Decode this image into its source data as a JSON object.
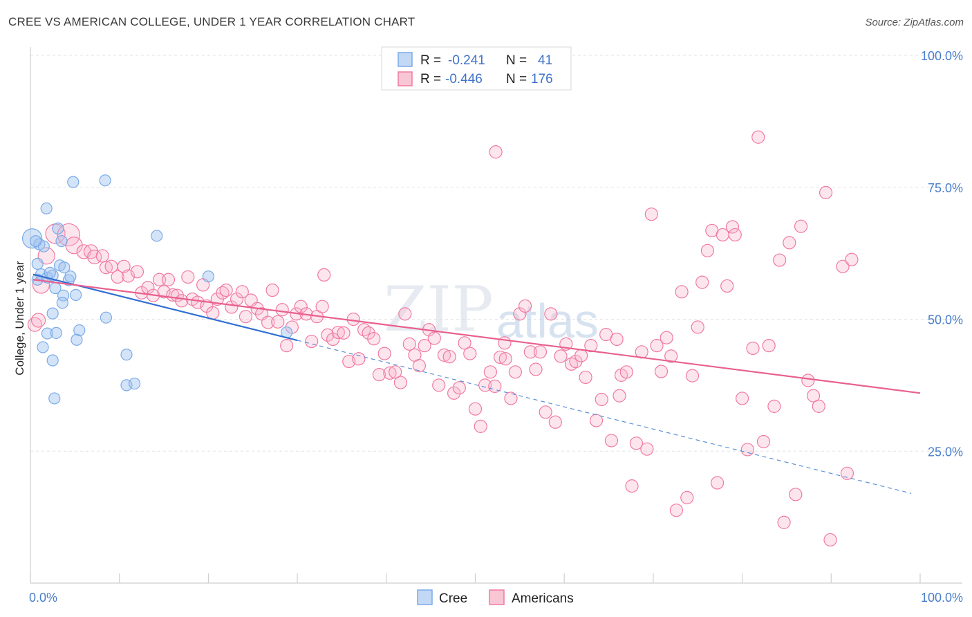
{
  "chart_data": {
    "type": "scatter",
    "title": "CREE VS AMERICAN COLLEGE, UNDER 1 YEAR CORRELATION CHART",
    "source": "Source: ZipAtlas.com",
    "xlabel": "",
    "ylabel": "College, Under 1 year",
    "xlim": [
      0,
      100
    ],
    "ylim": [
      0,
      100
    ],
    "x_tick_labels": [
      "0.0%",
      "100.0%"
    ],
    "y_tick_labels": [
      {
        "value": 100,
        "label": "100.0%"
      },
      {
        "value": 75,
        "label": "75.0%"
      },
      {
        "value": 50,
        "label": "50.0%"
      },
      {
        "value": 25,
        "label": "25.0%"
      }
    ],
    "legend": {
      "entries": [
        {
          "name": "Cree",
          "r_label": "R =",
          "r": "-0.241",
          "n_label": "N =",
          "n": "41",
          "color": "#7aaae8"
        },
        {
          "name": "Americans",
          "r_label": "R =",
          "r": "-0.446",
          "n_label": "N =",
          "n": "176",
          "color": "#f07aa0"
        }
      ]
    },
    "watermark": [
      "ZIP",
      "atlas"
    ],
    "series": [
      {
        "name": "Cree",
        "color": "#7aaae8",
        "trend": {
          "x0": 0.3,
          "y0": 58.5,
          "x1": 30,
          "y1": 46,
          "dash_to_x": 99,
          "dash_to_y": 17
        },
        "points": [
          [
            0.2,
            65.3,
            14
          ],
          [
            0.8,
            60.5,
            8
          ],
          [
            0.8,
            57.5,
            8
          ],
          [
            1.0,
            64.2,
            8
          ],
          [
            1.5,
            63.8,
            8
          ],
          [
            1.2,
            58.5,
            8
          ],
          [
            1.8,
            71.0,
            8
          ],
          [
            1.9,
            57.9,
            8
          ],
          [
            2.5,
            58.3,
            8
          ],
          [
            3.1,
            67.2,
            8
          ],
          [
            3.5,
            64.8,
            8
          ],
          [
            3.3,
            60.2,
            8
          ],
          [
            3.8,
            59.8,
            8
          ],
          [
            4.3,
            57.4,
            8
          ],
          [
            4.5,
            58.1,
            8
          ],
          [
            2.8,
            55.9,
            8
          ],
          [
            3.7,
            54.5,
            8
          ],
          [
            5.1,
            54.6,
            8
          ],
          [
            3.6,
            53.1,
            8
          ],
          [
            2.5,
            51.1,
            8
          ],
          [
            1.9,
            47.3,
            8
          ],
          [
            2.9,
            47.4,
            8
          ],
          [
            5.5,
            47.9,
            8
          ],
          [
            5.2,
            46.1,
            8
          ],
          [
            1.4,
            44.7,
            8
          ],
          [
            2.5,
            42.2,
            8
          ],
          [
            2.7,
            35.0,
            8
          ],
          [
            4.8,
            76.0,
            8
          ],
          [
            8.4,
            76.3,
            8
          ],
          [
            14.2,
            65.8,
            8
          ],
          [
            8.5,
            50.3,
            8
          ],
          [
            10.8,
            43.3,
            8
          ],
          [
            10.8,
            37.5,
            8
          ],
          [
            11.7,
            37.8,
            8
          ],
          [
            20.0,
            58.1,
            8
          ],
          [
            28.8,
            47.5,
            8
          ],
          [
            0.6,
            64.8,
            8
          ],
          [
            2.2,
            58.8,
            8
          ]
        ]
      },
      {
        "name": "Americans",
        "color": "#f07aa0",
        "trend": {
          "x0": 0.3,
          "y0": 57.5,
          "x1": 100,
          "y1": 36
        },
        "points": [
          [
            0.5,
            49.0,
            10
          ],
          [
            0.9,
            49.8,
            10
          ],
          [
            1.2,
            56.5,
            12
          ],
          [
            1.8,
            62.0,
            12
          ],
          [
            2.8,
            66.2,
            14
          ],
          [
            4.3,
            66.0,
            16
          ],
          [
            4.9,
            64.0,
            12
          ],
          [
            6.0,
            62.8,
            10
          ],
          [
            6.8,
            62.8,
            10
          ],
          [
            7.2,
            61.8,
            10
          ],
          [
            8.1,
            62.0,
            9
          ],
          [
            8.5,
            59.8,
            9
          ],
          [
            9.1,
            60.0,
            9
          ],
          [
            9.8,
            58.0,
            9
          ],
          [
            10.5,
            60.0,
            9
          ],
          [
            11.0,
            58.2,
            9
          ],
          [
            12.0,
            59.0,
            9
          ],
          [
            12.5,
            55.0,
            9
          ],
          [
            13.2,
            56.0,
            9
          ],
          [
            13.8,
            54.5,
            9
          ],
          [
            14.5,
            57.5,
            9
          ],
          [
            15.0,
            55.2,
            9
          ],
          [
            15.5,
            57.5,
            9
          ],
          [
            16.0,
            54.6,
            9
          ],
          [
            16.5,
            54.5,
            9
          ],
          [
            17.0,
            53.5,
            9
          ],
          [
            17.7,
            58.0,
            9
          ],
          [
            18.2,
            53.8,
            9
          ],
          [
            18.8,
            53.2,
            9
          ],
          [
            19.4,
            56.5,
            9
          ],
          [
            19.8,
            52.5,
            9
          ],
          [
            20.5,
            51.2,
            9
          ],
          [
            21.0,
            53.8,
            9
          ],
          [
            21.6,
            55.0,
            9
          ],
          [
            22.0,
            55.5,
            9
          ],
          [
            22.6,
            52.3,
            9
          ],
          [
            23.2,
            53.8,
            9
          ],
          [
            23.8,
            55.2,
            9
          ],
          [
            24.2,
            50.5,
            9
          ],
          [
            24.8,
            53.6,
            9
          ],
          [
            25.5,
            52.0,
            9
          ],
          [
            26.0,
            51.0,
            9
          ],
          [
            26.7,
            49.4,
            9
          ],
          [
            27.2,
            55.5,
            9
          ],
          [
            27.8,
            49.5,
            9
          ],
          [
            28.3,
            51.8,
            9
          ],
          [
            28.8,
            45.0,
            9
          ],
          [
            29.4,
            48.5,
            9
          ],
          [
            29.9,
            51.0,
            9
          ],
          [
            30.4,
            52.4,
            9
          ],
          [
            31.0,
            51.0,
            9
          ],
          [
            31.6,
            45.8,
            9
          ],
          [
            32.2,
            50.5,
            9
          ],
          [
            32.8,
            52.4,
            9
          ],
          [
            33.0,
            58.4,
            9
          ],
          [
            33.4,
            47.0,
            9
          ],
          [
            34.0,
            46.2,
            9
          ],
          [
            34.6,
            47.5,
            9
          ],
          [
            35.2,
            47.4,
            9
          ],
          [
            35.8,
            42.0,
            9
          ],
          [
            36.3,
            50.0,
            9
          ],
          [
            36.9,
            42.5,
            9
          ],
          [
            37.5,
            48.0,
            9
          ],
          [
            38.0,
            47.4,
            9
          ],
          [
            38.6,
            46.3,
            9
          ],
          [
            39.2,
            39.5,
            9
          ],
          [
            39.8,
            43.5,
            9
          ],
          [
            40.4,
            39.8,
            9
          ],
          [
            41.0,
            40.0,
            9
          ],
          [
            41.6,
            38.0,
            9
          ],
          [
            42.1,
            51.0,
            9
          ],
          [
            42.6,
            45.3,
            9
          ],
          [
            43.2,
            43.2,
            9
          ],
          [
            43.7,
            41.2,
            9
          ],
          [
            44.3,
            45.0,
            9
          ],
          [
            44.8,
            48.0,
            9
          ],
          [
            45.4,
            46.4,
            9
          ],
          [
            45.9,
            37.5,
            9
          ],
          [
            46.5,
            43.2,
            9
          ],
          [
            47.1,
            42.9,
            9
          ],
          [
            47.6,
            36.0,
            9
          ],
          [
            48.2,
            37.0,
            9
          ],
          [
            48.8,
            45.5,
            9
          ],
          [
            49.4,
            43.5,
            9
          ],
          [
            50.0,
            33.0,
            9
          ],
          [
            50.6,
            29.7,
            9
          ],
          [
            51.1,
            37.5,
            9
          ],
          [
            51.7,
            40.0,
            9
          ],
          [
            52.2,
            37.3,
            9
          ],
          [
            52.8,
            42.8,
            9
          ],
          [
            53.4,
            42.5,
            9
          ],
          [
            54.0,
            35.0,
            9
          ],
          [
            54.5,
            40.0,
            9
          ],
          [
            55.0,
            51.0,
            9
          ],
          [
            55.6,
            52.5,
            9
          ],
          [
            56.2,
            43.8,
            9
          ],
          [
            56.8,
            40.5,
            9
          ],
          [
            57.3,
            43.8,
            9
          ],
          [
            57.9,
            32.4,
            9
          ],
          [
            58.5,
            51.0,
            9
          ],
          [
            59.0,
            30.5,
            9
          ],
          [
            59.6,
            43.0,
            9
          ],
          [
            60.2,
            45.3,
            9
          ],
          [
            60.8,
            41.5,
            9
          ],
          [
            61.3,
            42.0,
            9
          ],
          [
            61.9,
            43.1,
            9
          ],
          [
            62.4,
            39.0,
            9
          ],
          [
            63.0,
            45.0,
            9
          ],
          [
            63.6,
            30.8,
            9
          ],
          [
            64.2,
            34.8,
            9
          ],
          [
            64.7,
            47.1,
            9
          ],
          [
            65.3,
            27.0,
            9
          ],
          [
            65.9,
            46.2,
            9
          ],
          [
            66.4,
            39.4,
            9
          ],
          [
            67.0,
            40.0,
            9
          ],
          [
            67.6,
            18.4,
            9
          ],
          [
            68.1,
            26.5,
            9
          ],
          [
            68.7,
            43.8,
            9
          ],
          [
            69.3,
            25.4,
            9
          ],
          [
            69.8,
            69.9,
            9
          ],
          [
            70.4,
            45.0,
            9
          ],
          [
            70.9,
            40.1,
            9
          ],
          [
            71.5,
            46.5,
            9
          ],
          [
            72.0,
            43.0,
            9
          ],
          [
            72.6,
            13.8,
            9
          ],
          [
            73.2,
            55.2,
            9
          ],
          [
            73.8,
            16.2,
            9
          ],
          [
            74.4,
            39.3,
            9
          ],
          [
            75.0,
            48.5,
            9
          ],
          [
            75.5,
            57.0,
            9
          ],
          [
            76.1,
            63.0,
            9
          ],
          [
            76.6,
            66.8,
            9
          ],
          [
            77.2,
            19.0,
            9
          ],
          [
            77.8,
            66.0,
            9
          ],
          [
            78.3,
            56.3,
            9
          ],
          [
            78.9,
            67.5,
            9
          ],
          [
            79.2,
            66.0,
            9
          ],
          [
            80.0,
            35.0,
            9
          ],
          [
            80.6,
            25.3,
            9
          ],
          [
            81.2,
            44.5,
            9
          ],
          [
            81.8,
            84.5,
            9
          ],
          [
            82.4,
            26.8,
            9
          ],
          [
            83.0,
            45.0,
            9
          ],
          [
            83.6,
            33.5,
            9
          ],
          [
            84.2,
            61.2,
            9
          ],
          [
            84.7,
            11.5,
            9
          ],
          [
            85.3,
            64.5,
            9
          ],
          [
            86.0,
            16.8,
            9
          ],
          [
            86.6,
            67.6,
            9
          ],
          [
            87.4,
            38.4,
            9
          ],
          [
            88.0,
            35.5,
            9
          ],
          [
            88.6,
            33.5,
            9
          ],
          [
            89.4,
            74.0,
            9
          ],
          [
            89.9,
            8.2,
            9
          ],
          [
            91.3,
            60.0,
            9
          ],
          [
            91.8,
            20.8,
            9
          ],
          [
            92.3,
            61.3,
            9
          ],
          [
            52.3,
            81.7,
            9
          ],
          [
            53.3,
            45.5,
            9
          ],
          [
            66.2,
            35.5,
            9
          ]
        ]
      }
    ]
  }
}
